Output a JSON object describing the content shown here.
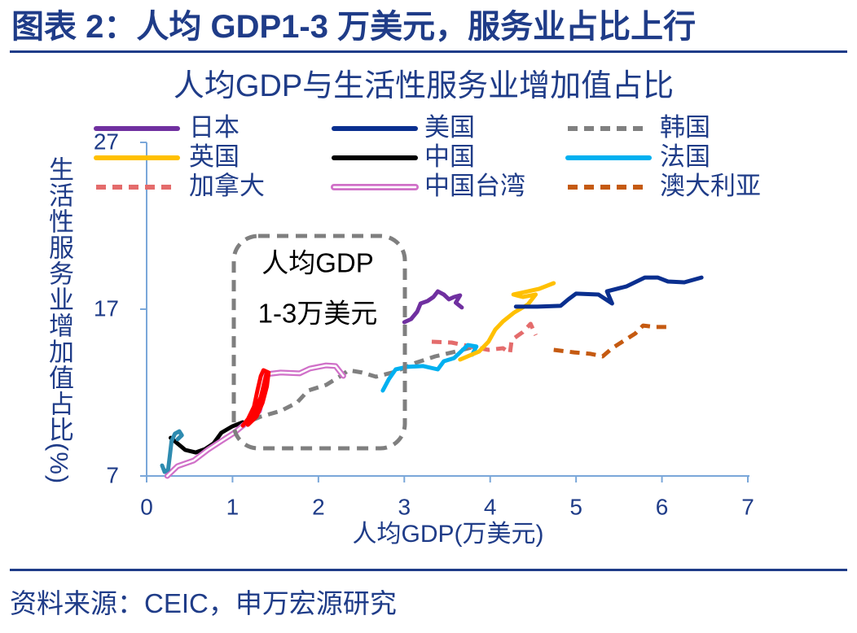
{
  "header": {
    "title": "图表 2：人均 GDP1-3 万美元，服务业占比上行"
  },
  "footer": {
    "source": "资料来源：CEIC，申万宏源研究"
  },
  "colors": {
    "title": "#1f3c88",
    "text": "#1f3c88",
    "axis": "#7aa7d9",
    "annotation_box": "#7f7f7f"
  },
  "chart_data": {
    "type": "line",
    "title": "人均GDP与生活性服务业增加值占比",
    "xlabel": "人均GDP(万美元)",
    "ylabel": "生活性服务业增加值占比(%)",
    "xlim": [
      0,
      7
    ],
    "ylim": [
      7,
      27
    ],
    "xticks": [
      0,
      1,
      2,
      3,
      4,
      5,
      6,
      7
    ],
    "yticks": [
      7,
      17,
      27
    ],
    "grid": false,
    "legend_placement": "top",
    "annotation": {
      "style": "dashed-box",
      "lines": [
        "人均GDP",
        "1-3万美元"
      ]
    },
    "series": [
      {
        "name": "日本",
        "color": "#7030a0",
        "style": "solid",
        "points": [
          [
            3.0,
            16.22
          ],
          [
            3.08,
            16.41
          ],
          [
            3.15,
            16.85
          ],
          [
            3.19,
            17.34
          ],
          [
            3.27,
            17.49
          ],
          [
            3.34,
            17.73
          ],
          [
            3.39,
            18.07
          ],
          [
            3.46,
            17.88
          ],
          [
            3.52,
            17.59
          ],
          [
            3.58,
            17.73
          ],
          [
            3.65,
            17.83
          ],
          [
            3.6,
            17.39
          ],
          [
            3.67,
            17.1
          ]
        ]
      },
      {
        "name": "美国",
        "color": "#0a2f8f",
        "style": "solid",
        "points": [
          [
            4.3,
            17.15
          ],
          [
            4.55,
            17.15
          ],
          [
            4.82,
            17.2
          ],
          [
            4.91,
            17.59
          ],
          [
            5.0,
            17.93
          ],
          [
            5.26,
            17.88
          ],
          [
            5.42,
            17.34
          ],
          [
            5.36,
            18.07
          ],
          [
            5.59,
            18.37
          ],
          [
            5.8,
            18.9
          ],
          [
            5.95,
            18.9
          ],
          [
            6.07,
            18.66
          ],
          [
            6.26,
            18.61
          ],
          [
            6.46,
            18.9
          ]
        ]
      },
      {
        "name": "韩国",
        "color": "#808080",
        "style": "dashed",
        "points": [
          [
            1.06,
            9.98
          ],
          [
            1.33,
            10.56
          ],
          [
            1.56,
            10.9
          ],
          [
            1.75,
            11.39
          ],
          [
            1.88,
            12.12
          ],
          [
            2.09,
            12.46
          ],
          [
            2.26,
            13.0
          ],
          [
            2.35,
            13.34
          ],
          [
            2.51,
            13.2
          ],
          [
            2.67,
            12.95
          ],
          [
            2.89,
            13.24
          ],
          [
            3.13,
            13.78
          ],
          [
            3.36,
            14.17
          ],
          [
            3.6,
            14.46
          ],
          [
            3.79,
            14.71
          ]
        ]
      },
      {
        "name": "英国",
        "color": "#ffc000",
        "style": "solid",
        "points": [
          [
            3.65,
            13.98
          ],
          [
            3.87,
            14.46
          ],
          [
            3.98,
            15.05
          ],
          [
            4.06,
            15.78
          ],
          [
            4.15,
            16.27
          ],
          [
            4.28,
            16.8
          ],
          [
            4.44,
            17.29
          ],
          [
            4.53,
            17.88
          ],
          [
            4.38,
            17.73
          ],
          [
            4.27,
            17.88
          ],
          [
            4.44,
            18.07
          ],
          [
            4.57,
            18.22
          ],
          [
            4.74,
            18.56
          ]
        ]
      },
      {
        "name": "中国",
        "color": "#000000",
        "style": "solid",
        "points": [
          [
            0.28,
            9.29
          ],
          [
            0.45,
            8.56
          ],
          [
            0.57,
            8.41
          ],
          [
            0.68,
            8.61
          ],
          [
            0.78,
            8.95
          ],
          [
            0.87,
            9.59
          ],
          [
            1.0,
            9.98
          ],
          [
            1.12,
            10.22
          ]
        ]
      },
      {
        "name": "法国",
        "color": "#00b0f0",
        "style": "solid",
        "points": [
          [
            2.75,
            12.12
          ],
          [
            2.82,
            12.8
          ],
          [
            2.9,
            13.39
          ],
          [
            3.03,
            13.54
          ],
          [
            3.22,
            13.59
          ],
          [
            3.39,
            13.39
          ],
          [
            3.46,
            13.88
          ],
          [
            3.58,
            14.07
          ],
          [
            3.66,
            14.46
          ],
          [
            3.74,
            14.85
          ],
          [
            3.84,
            14.76
          ],
          [
            3.79,
            14.27
          ]
        ]
      },
      {
        "name": "加拿大",
        "color": "#e46c6c",
        "style": "dashed",
        "points": [
          [
            3.32,
            15.05
          ],
          [
            3.55,
            15.0
          ],
          [
            3.77,
            14.76
          ],
          [
            3.98,
            14.56
          ],
          [
            4.15,
            14.66
          ],
          [
            4.23,
            14.37
          ],
          [
            4.25,
            15.15
          ],
          [
            4.38,
            15.63
          ],
          [
            4.47,
            16.12
          ],
          [
            4.53,
            15.44
          ]
        ]
      },
      {
        "name": "中国台湾",
        "color": "#d070c8",
        "style": "double",
        "points": [
          [
            0.24,
            7.0
          ],
          [
            0.36,
            7.59
          ],
          [
            0.55,
            7.93
          ],
          [
            0.71,
            8.56
          ],
          [
            0.87,
            9.1
          ],
          [
            1.02,
            9.59
          ],
          [
            1.18,
            10.27
          ],
          [
            1.31,
            10.9
          ],
          [
            1.4,
            13.1
          ],
          [
            1.56,
            13.2
          ],
          [
            1.78,
            13.15
          ],
          [
            1.9,
            13.44
          ],
          [
            2.09,
            13.63
          ],
          [
            2.2,
            13.59
          ],
          [
            2.29,
            13.0
          ]
        ]
      },
      {
        "name": "澳大利亚",
        "color": "#c55a11",
        "style": "dashed",
        "points": [
          [
            4.74,
            14.56
          ],
          [
            4.98,
            14.41
          ],
          [
            5.17,
            14.32
          ],
          [
            5.31,
            14.17
          ],
          [
            5.42,
            14.66
          ],
          [
            5.57,
            15.15
          ],
          [
            5.69,
            15.54
          ],
          [
            5.78,
            16.02
          ],
          [
            5.92,
            15.93
          ],
          [
            6.09,
            15.93
          ]
        ]
      },
      {
        "color": "#ff0000",
        "style": "solid",
        "points": [
          [
            1.12,
            10.02
          ],
          [
            1.18,
            10.41
          ],
          [
            1.25,
            11.15
          ],
          [
            1.29,
            12.12
          ],
          [
            1.33,
            13.0
          ],
          [
            1.36,
            13.34
          ],
          [
            1.42,
            13.2
          ],
          [
            1.4,
            12.37
          ],
          [
            1.35,
            11.39
          ],
          [
            1.28,
            10.56
          ],
          [
            1.18,
            10.07
          ],
          [
            1.25,
            10.76
          ],
          [
            1.33,
            11.73
          ],
          [
            1.38,
            12.8
          ],
          [
            1.4,
            13.2
          ]
        ]
      },
      {
        "color": "#2e8bb0",
        "style": "solid",
        "points": [
          [
            0.18,
            7.63
          ],
          [
            0.21,
            7.24
          ],
          [
            0.25,
            7.39
          ],
          [
            0.27,
            8.22
          ],
          [
            0.29,
            9.1
          ],
          [
            0.33,
            9.54
          ],
          [
            0.38,
            9.68
          ],
          [
            0.41,
            9.44
          ],
          [
            0.36,
            9.2
          ]
        ]
      }
    ]
  }
}
